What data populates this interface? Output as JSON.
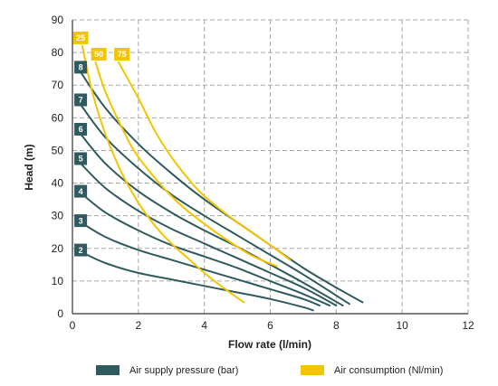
{
  "chart_data": {
    "type": "line",
    "xlabel": "Flow rate (l/min)",
    "ylabel": "Head (m)",
    "xlim": [
      0,
      12
    ],
    "ylim": [
      0,
      90
    ],
    "xticks": [
      "0",
      "2",
      "4",
      "6",
      "8",
      "10",
      "12"
    ],
    "yticks": [
      "0",
      "10",
      "20",
      "30",
      "40",
      "50",
      "60",
      "70",
      "80",
      "90"
    ],
    "grid": true,
    "legend_position": "bottom",
    "legend": [
      {
        "label": "Air supply pressure (bar)",
        "color": "#2f5a5e"
      },
      {
        "label": "Air consumption (Nl/min)",
        "color": "#f5c400"
      }
    ],
    "series": [
      {
        "name": "2",
        "group": "pressure",
        "color": "#2f5a5e",
        "label_at": [
          0.25,
          19.5
        ],
        "points": [
          [
            0.25,
            19
          ],
          [
            1,
            15.5
          ],
          [
            2,
            12.5
          ],
          [
            3,
            10.5
          ],
          [
            4,
            8.5
          ],
          [
            5,
            6.5
          ],
          [
            6,
            4.5
          ],
          [
            7,
            2
          ],
          [
            7.3,
            1
          ]
        ]
      },
      {
        "name": "3",
        "group": "pressure",
        "color": "#2f5a5e",
        "label_at": [
          0.25,
          28.5
        ],
        "points": [
          [
            0.25,
            28
          ],
          [
            1,
            23.5
          ],
          [
            2,
            19.5
          ],
          [
            3,
            16.5
          ],
          [
            4,
            13.5
          ],
          [
            5,
            10.5
          ],
          [
            6,
            7.5
          ],
          [
            7,
            4.5
          ],
          [
            7.5,
            2.5
          ]
        ]
      },
      {
        "name": "4",
        "group": "pressure",
        "color": "#2f5a5e",
        "label_at": [
          0.25,
          37.5
        ],
        "points": [
          [
            0.25,
            37
          ],
          [
            1,
            31
          ],
          [
            2,
            25.5
          ],
          [
            3,
            21
          ],
          [
            4,
            17.5
          ],
          [
            5,
            14
          ],
          [
            6,
            10
          ],
          [
            7,
            6
          ],
          [
            7.8,
            2.5
          ]
        ]
      },
      {
        "name": "5",
        "group": "pressure",
        "color": "#2f5a5e",
        "label_at": [
          0.25,
          47.5
        ],
        "points": [
          [
            0.25,
            46
          ],
          [
            1,
            38.5
          ],
          [
            2,
            31.5
          ],
          [
            3,
            26
          ],
          [
            4,
            21.5
          ],
          [
            5,
            17
          ],
          [
            6,
            12.5
          ],
          [
            7,
            8
          ],
          [
            8,
            2.5
          ]
        ]
      },
      {
        "name": "6",
        "group": "pressure",
        "color": "#2f5a5e",
        "label_at": [
          0.25,
          56.5
        ],
        "points": [
          [
            0.25,
            55
          ],
          [
            1,
            46
          ],
          [
            2,
            37.5
          ],
          [
            3,
            31
          ],
          [
            4,
            25.5
          ],
          [
            5,
            20.5
          ],
          [
            6,
            15
          ],
          [
            7,
            9.5
          ],
          [
            8.2,
            2.5
          ]
        ]
      },
      {
        "name": "7",
        "group": "pressure",
        "color": "#2f5a5e",
        "label_at": [
          0.25,
          65.5
        ],
        "points": [
          [
            0.25,
            64
          ],
          [
            1,
            54
          ],
          [
            2,
            44.5
          ],
          [
            3,
            36.5
          ],
          [
            4,
            30
          ],
          [
            5,
            24
          ],
          [
            6,
            18
          ],
          [
            7,
            12
          ],
          [
            8.4,
            3
          ]
        ]
      },
      {
        "name": "8",
        "group": "pressure",
        "color": "#2f5a5e",
        "label_at": [
          0.25,
          75.5
        ],
        "points": [
          [
            0.25,
            74
          ],
          [
            1,
            63
          ],
          [
            2,
            52
          ],
          [
            3,
            43
          ],
          [
            4,
            35
          ],
          [
            5,
            28
          ],
          [
            6,
            21
          ],
          [
            7,
            14
          ],
          [
            8,
            8
          ],
          [
            8.8,
            3.5
          ]
        ]
      },
      {
        "name": "25",
        "group": "consumption",
        "color": "#f5c400",
        "label_at": [
          0.25,
          84.5
        ],
        "points": [
          [
            0.3,
            82
          ],
          [
            0.6,
            68
          ],
          [
            1,
            55
          ],
          [
            1.5,
            43
          ],
          [
            2,
            34
          ],
          [
            2.5,
            27
          ],
          [
            3,
            21.5
          ],
          [
            3.5,
            17
          ],
          [
            4,
            12.5
          ],
          [
            4.5,
            8.5
          ],
          [
            5.2,
            3.5
          ]
        ]
      },
      {
        "name": "50",
        "group": "consumption",
        "color": "#f5c400",
        "label_at": [
          0.8,
          79.5
        ],
        "points": [
          [
            0.7,
            77
          ],
          [
            1,
            68
          ],
          [
            1.5,
            57
          ],
          [
            2,
            48
          ],
          [
            3,
            36
          ],
          [
            4,
            27.5
          ],
          [
            5,
            20.5
          ],
          [
            5.5,
            17.5
          ],
          [
            6.2,
            14.5
          ]
        ]
      },
      {
        "name": "75",
        "group": "consumption",
        "color": "#f5c400",
        "label_at": [
          1.5,
          79.5
        ],
        "points": [
          [
            1.4,
            77
          ],
          [
            2,
            66
          ],
          [
            2.5,
            56
          ],
          [
            3,
            48
          ],
          [
            3.5,
            41.5
          ],
          [
            4,
            36
          ],
          [
            5,
            28
          ],
          [
            6,
            21
          ],
          [
            6.6,
            16.5
          ]
        ]
      }
    ]
  }
}
